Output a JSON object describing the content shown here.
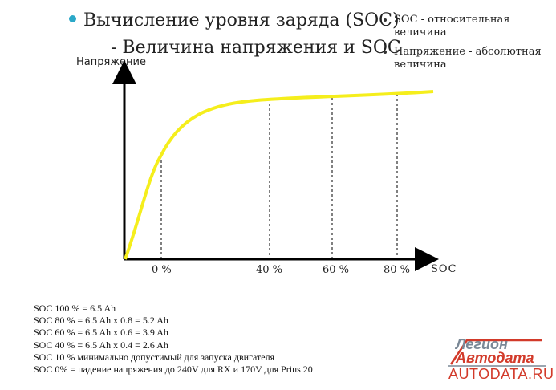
{
  "title": {
    "line1": "Вычисление уровня заряда (SOC)",
    "line2": "- Величина напряжения и SOC"
  },
  "side_notes": [
    "SOC - относительная величина",
    "Напряжение - абсолютная величина"
  ],
  "chart_data": {
    "type": "line",
    "ylabel": "Напряжение",
    "xlabel": "SOC",
    "x_ticks": [
      "0 %",
      "40 %",
      "60 %",
      "80 %"
    ],
    "series": [
      {
        "color": "#f5ee1c"
      }
    ],
    "reference_lines": [
      "0 %",
      "40 %",
      "60 %",
      "80 %"
    ]
  },
  "info_lines": [
    "SOC 100 % = 6.5 Ah",
    "SOC 80 % = 6.5 Ah x 0.8 = 5.2 Ah",
    "SOC 60 % = 6.5 Ah x 0.6 = 3.9 Ah",
    "SOC 40 % = 6.5 Ah x 0.4 = 2.6 Ah",
    "SOC 10 % минимально допустимый для запуска двигателя",
    "SOC 0% = падение напряжения до 240V для RX и 170V для Prius 20"
  ],
  "logo": {
    "line1": "Легион",
    "line2": "Автодата",
    "url": "AUTODATA.RU"
  },
  "colors": {
    "curve": "#f5ee1c",
    "bullet": "#2aa8c8",
    "logo_red": "#d23a2a",
    "logo_gray": "#7a8896"
  }
}
